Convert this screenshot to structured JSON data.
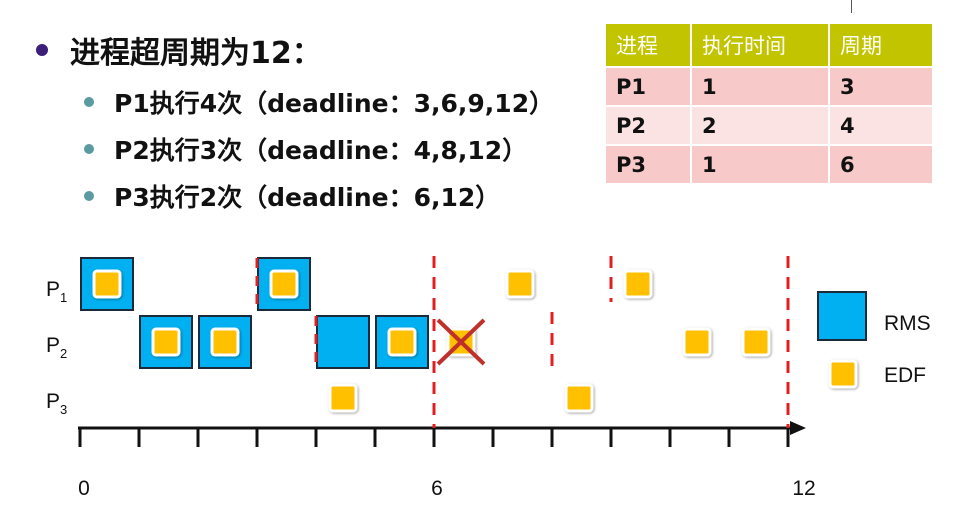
{
  "bullets": {
    "main": "进程超周期为12：",
    "items": [
      "P1执行4次（deadline：3,6,9,12）",
      "P2执行3次（deadline：4,8,12）",
      "P3执行2次（deadline：6,12）"
    ]
  },
  "table": {
    "headers": [
      "进程",
      "执行时间",
      "周期"
    ],
    "rows": [
      [
        "P1",
        "1",
        "3"
      ],
      [
        "P2",
        "2",
        "4"
      ],
      [
        "P3",
        "1",
        "6"
      ]
    ]
  },
  "timeline": {
    "process_labels": [
      {
        "main": "P",
        "sub": "1"
      },
      {
        "main": "P",
        "sub": "2"
      },
      {
        "main": "P",
        "sub": "3"
      }
    ],
    "axis_labels": [
      "0",
      "6",
      "12"
    ],
    "legend": {
      "rms": "RMS",
      "edf": "EDF"
    },
    "colors": {
      "rms_fill": "#00b0f0",
      "edf_fill": "#ffc000",
      "deadline": "#e02020",
      "miss_mark": "#c0302a"
    },
    "schedule": {
      "rms": [
        {
          "process": "P1",
          "start": 0,
          "dashed_left": false
        },
        {
          "process": "P2",
          "start": 1,
          "dashed_left": false
        },
        {
          "process": "P2",
          "start": 2,
          "dashed_left": false
        },
        {
          "process": "P1",
          "start": 3,
          "dashed_left": true
        },
        {
          "process": "P2",
          "start": 4,
          "dashed_left": true,
          "no_edf": true
        },
        {
          "process": "P2",
          "start": 5,
          "dashed_left": false
        }
      ],
      "edf": [
        {
          "process": "P3",
          "start": 4
        },
        {
          "process": "P2",
          "start": 6,
          "missed": true
        },
        {
          "process": "P1",
          "start": 7
        },
        {
          "process": "P3",
          "start": 8
        },
        {
          "process": "P1",
          "start": 9
        },
        {
          "process": "P2",
          "start": 10
        },
        {
          "process": "P2",
          "start": 11
        }
      ],
      "deadlines": [
        {
          "t": 6,
          "span": "full"
        },
        {
          "t": 8,
          "span": "p2"
        },
        {
          "t": 9,
          "span": "p1"
        },
        {
          "t": 12,
          "span": "full"
        }
      ]
    }
  }
}
